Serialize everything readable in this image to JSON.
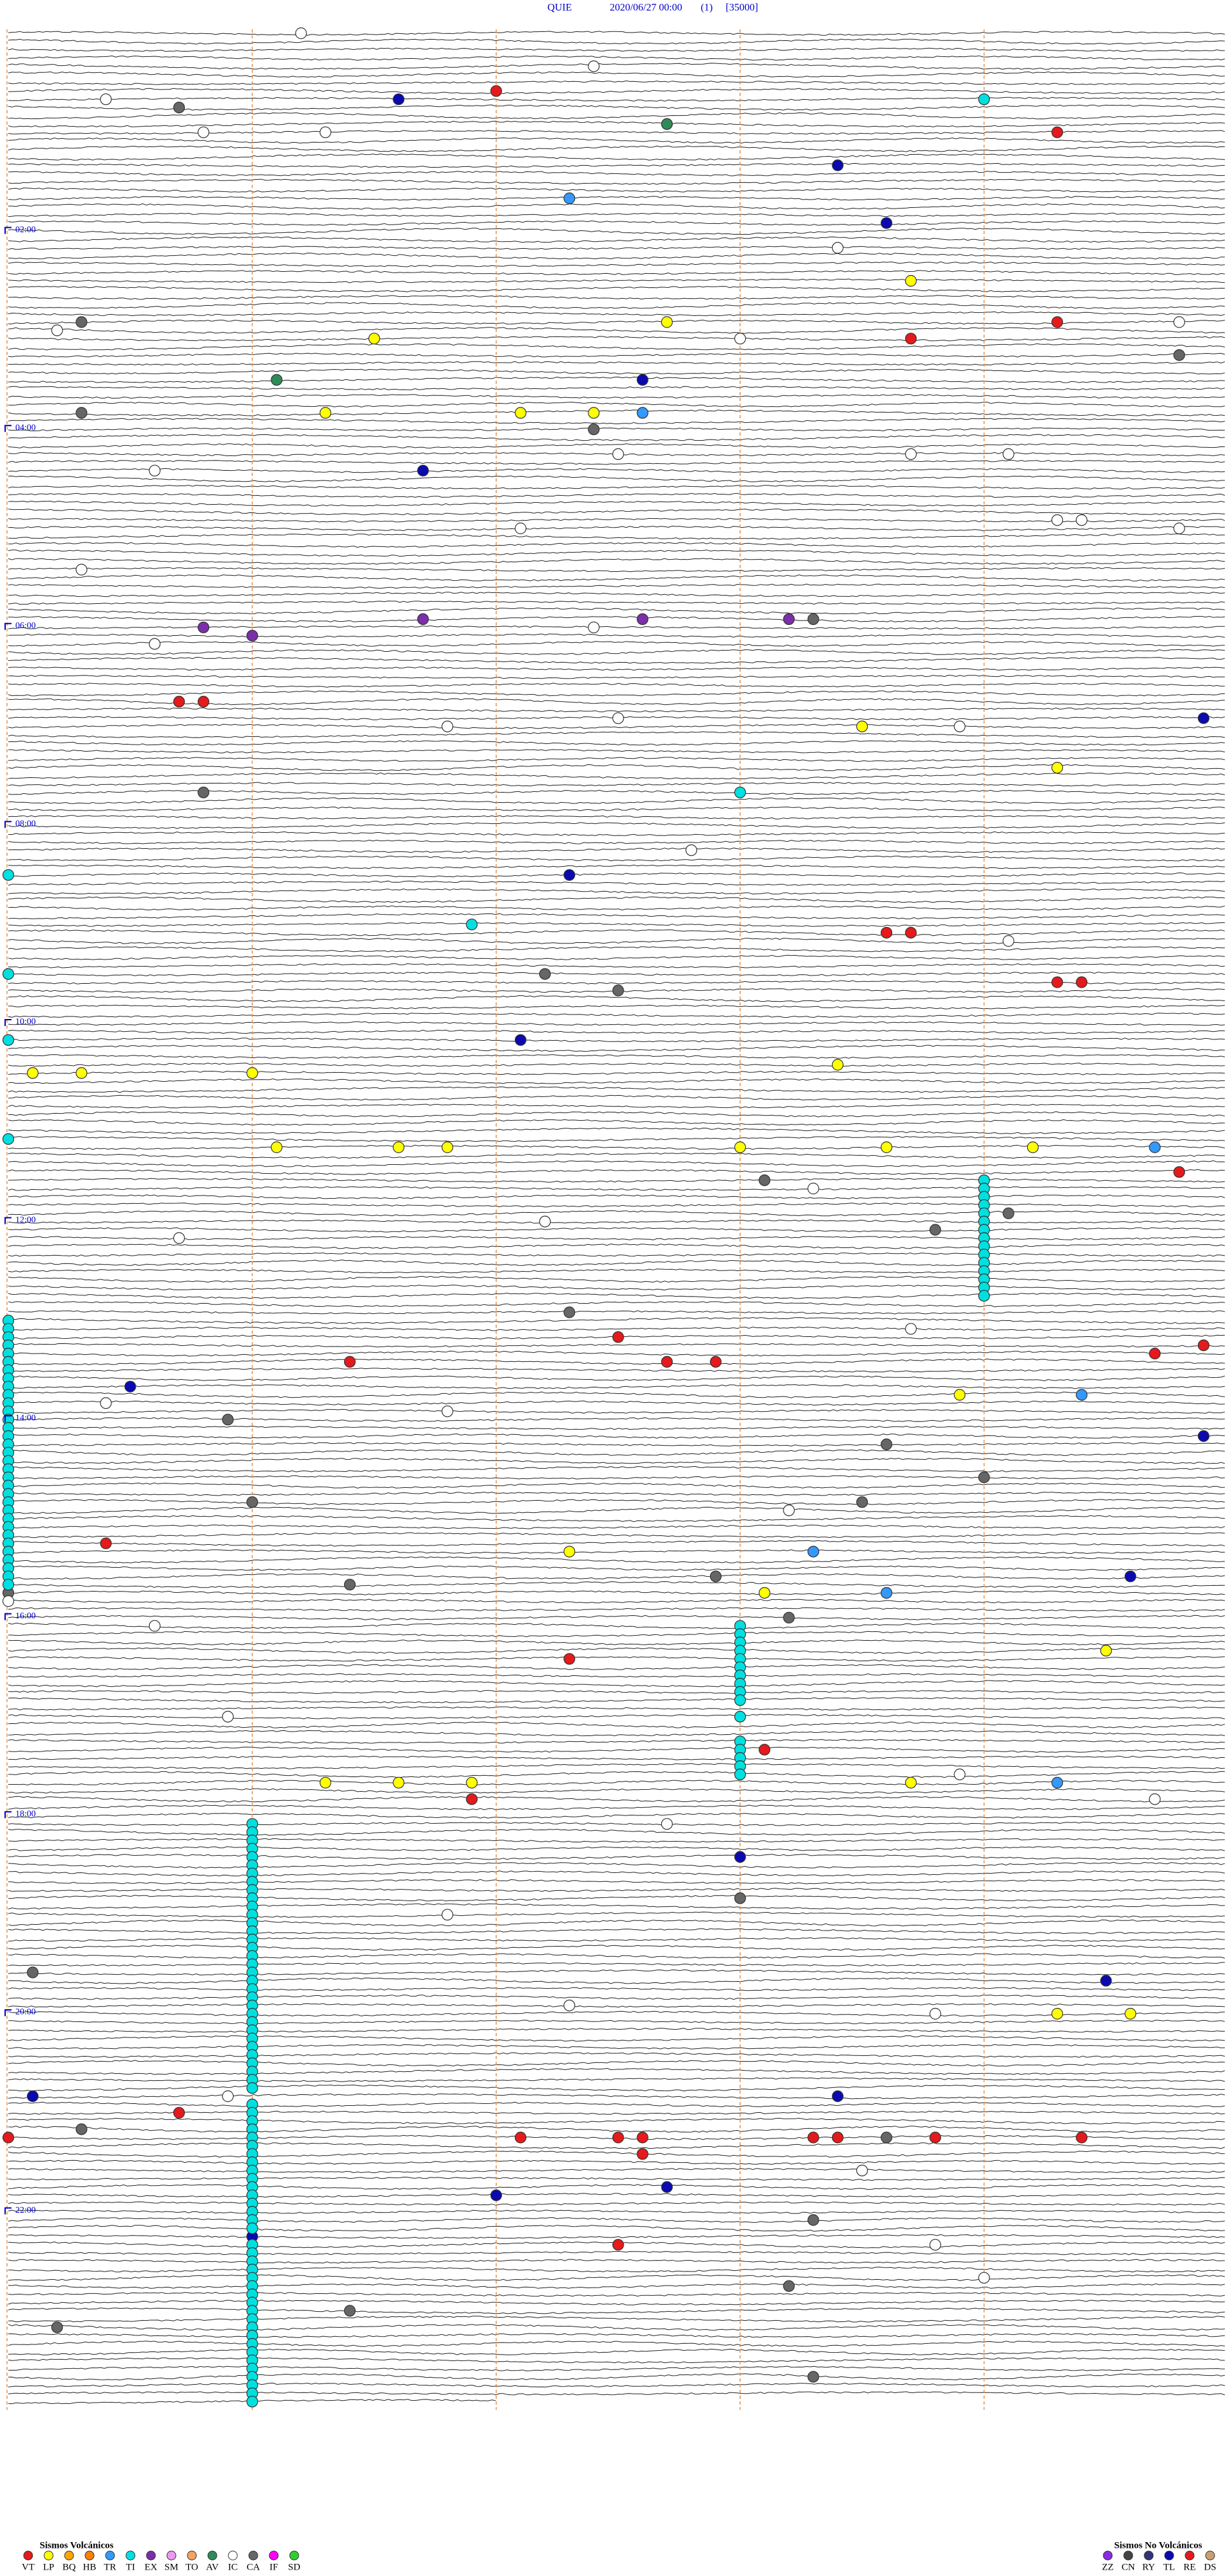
{
  "header": {
    "station": "QUIE",
    "datetime": "2020/06/27 00:00",
    "channel": "(1)",
    "scale": "[35000]"
  },
  "hour_labels": [
    "02:00",
    "04:00",
    "06:00",
    "08:00",
    "10:00",
    "12:00",
    "14:00",
    "16:00",
    "18:00",
    "20:00",
    "22:00"
  ],
  "legend": {
    "volcanic": {
      "title": "Sismos Volcánicos",
      "codes": [
        "VT",
        "LP",
        "BQ",
        "HB",
        "TR",
        "TI",
        "EX",
        "SM",
        "TO",
        "AV",
        "IC",
        "CA",
        "IF",
        "SD"
      ]
    },
    "non_volcanic": {
      "title": "Sismos No Volcánicos",
      "codes": [
        "ZZ",
        "CN",
        "RY",
        "TL",
        "RE",
        "DS"
      ]
    }
  },
  "colors": {
    "VT": "#e41a1c",
    "LP": "#ffff00",
    "BQ": "#ffa500",
    "HB": "#ff7f00",
    "TR": "#3399ff",
    "TI": "#00e0e0",
    "EX": "#7b2fa8",
    "SM": "#ee99ee",
    "TO": "#f4a460",
    "AV": "#2e8b57",
    "IC": "#ffffff",
    "CA": "#666666",
    "IF": "#ff00ff",
    "SD": "#32cd32",
    "ZZ": "#8a2be2",
    "CN": "#444444",
    "RY": "#333377",
    "TL": "#0a0ab0",
    "RE": "#e41a1c",
    "DS": "#c8a070"
  },
  "events": [
    [
      1.2,
      "IC"
    ],
    [
      37.0,
      "VT"
    ],
    [
      44.0,
      "TI"
    ],
    [
      45.7,
      "CA"
    ],
    [
      41.6,
      "TL"
    ],
    [
      57.7,
      "AV"
    ],
    [
      64.3,
      "VT"
    ],
    [
      83.4,
      "TL"
    ],
    [
      102.3,
      "TR"
    ],
    [
      118.6,
      "TL"
    ],
    [
      153.7,
      "LP"
    ],
    [
      177.7,
      "LP"
    ],
    [
      179.3,
      "VT"
    ],
    [
      175.3,
      "CA"
    ],
    [
      186.5,
      "LP"
    ],
    [
      188.7,
      "VT"
    ],
    [
      199.8,
      "CA"
    ],
    [
      212.6,
      "TL"
    ],
    [
      211.1,
      "AV"
    ],
    [
      232.1,
      "LP"
    ],
    [
      232.4,
      "LP"
    ],
    [
      232.6,
      "TR"
    ],
    [
      230.3,
      "CA"
    ],
    [
      231.3,
      "LP"
    ],
    [
      242.4,
      "CA"
    ],
    [
      266.7,
      "TL"
    ],
    [
      357.6,
      "EX"
    ],
    [
      358.2,
      "EX"
    ],
    [
      358.3,
      "CA"
    ],
    [
      360.8,
      "EX"
    ],
    [
      366.0,
      "EX"
    ],
    [
      356.7,
      "EX"
    ],
    [
      405.7,
      "VT"
    ],
    [
      405.8,
      "VT"
    ],
    [
      423.5,
      "LP"
    ],
    [
      419.9,
      "TL"
    ],
    [
      449.3,
      "LP"
    ],
    [
      460.8,
      "CA"
    ],
    [
      463.0,
      "TI"
    ],
    [
      512.3,
      "TL"
    ],
    [
      548.6,
      "VT"
    ],
    [
      548.7,
      "VT"
    ],
    [
      572.2,
      "CA"
    ],
    [
      582.5,
      "CA"
    ],
    [
      579.3,
      "VT"
    ],
    [
      579.4,
      "VT"
    ],
    [
      612.1,
      "TL"
    ],
    [
      628.4,
      "LP"
    ],
    [
      630.1,
      "LP"
    ],
    [
      630.3,
      "LP"
    ],
    [
      631.0,
      "LP"
    ],
    [
      678.0,
      "LP"
    ],
    [
      678.6,
      "LP"
    ],
    [
      679.2,
      "LP"
    ],
    [
      679.7,
      "TR"
    ],
    [
      676.1,
      "LP"
    ],
    [
      676.6,
      "LP"
    ],
    [
      676.8,
      "LP"
    ],
    [
      694.8,
      "VT"
    ],
    [
      698.1,
      "CA"
    ],
    [
      728.8,
      "CA"
    ],
    [
      719.1,
      "CA"
    ],
    [
      777.3,
      "CA"
    ],
    [
      792.5,
      "VT"
    ],
    [
      807.7,
      "VT"
    ],
    [
      807.9,
      "VT"
    ],
    [
      804.7,
      "VT"
    ],
    [
      799.9,
      "VT"
    ],
    [
      806.4,
      "VT"
    ],
    [
      820.5,
      "TL"
    ],
    [
      828.9,
      "LP"
    ],
    [
      829.4,
      "TR"
    ],
    [
      840.9,
      "CA"
    ],
    [
      854.9,
      "TL"
    ],
    [
      858.6,
      "CA"
    ],
    [
      879.0,
      "CA"
    ],
    [
      891.0,
      "CA"
    ],
    [
      893.5,
      "CA"
    ],
    [
      915.4,
      "VT"
    ],
    [
      922.3,
      "LP"
    ],
    [
      923.3,
      "TR"
    ],
    [
      937.9,
      "CA"
    ],
    [
      939.6,
      "TL"
    ],
    [
      945.0,
      "CA"
    ],
    [
      941.4,
      "CA"
    ],
    [
      948.1,
      "LP"
    ],
    [
      948.6,
      "TR"
    ],
    [
      963.2,
      "CA"
    ],
    [
      987.3,
      "VT"
    ],
    [
      984.5,
      "LP"
    ],
    [
      1043.1,
      "VT"
    ],
    [
      1063.7,
      "LP"
    ],
    [
      1064.3,
      "TR"
    ],
    [
      1061.3,
      "LP"
    ],
    [
      1061.6,
      "LP"
    ],
    [
      1061.9,
      "LP"
    ],
    [
      1071.9,
      "VT"
    ],
    [
      1108.0,
      "TL"
    ],
    [
      1133.0,
      "CA"
    ],
    [
      1175.1,
      "CA"
    ],
    [
      1184.5,
      "TL"
    ],
    [
      1204.3,
      "LP"
    ],
    [
      1204.6,
      "LP"
    ],
    [
      1253.4,
      "TL"
    ],
    [
      1250.1,
      "TL"
    ],
    [
      1260.7,
      "VT"
    ],
    [
      1270.3,
      "CA"
    ],
    [
      1277.1,
      "VT"
    ],
    [
      1277.5,
      "VT"
    ],
    [
      1277.6,
      "VT"
    ],
    [
      1278.3,
      "VT"
    ],
    [
      1278.4,
      "VT"
    ],
    [
      1278.6,
      "CA"
    ],
    [
      1278.8,
      "VT"
    ],
    [
      1279.4,
      "VT"
    ],
    [
      1275.0,
      "VT"
    ],
    [
      1287.6,
      "VT"
    ],
    [
      1307.7,
      "TL"
    ],
    [
      1312.0,
      "TL"
    ],
    [
      1328.3,
      "CA"
    ],
    [
      1336.0,
      "TL"
    ],
    [
      1342.5,
      "VT"
    ],
    [
      1368.2,
      "CA"
    ],
    [
      1381.4,
      "CA"
    ],
    [
      1390.2,
      "CA"
    ],
    [
      1423.3,
      "CA"
    ],
    [
      22.4,
      "IC"
    ],
    [
      40.4,
      "IC"
    ],
    [
      60.8,
      "IC"
    ],
    [
      61.3,
      "IC"
    ],
    [
      133.4,
      "IC"
    ],
    [
      188.0,
      "IC"
    ],
    [
      179.8,
      "IC"
    ],
    [
      180.2,
      "IC"
    ],
    [
      257.5,
      "IC"
    ],
    [
      258.7,
      "IC"
    ],
    [
      259.1,
      "IC"
    ],
    [
      265.6,
      "IC"
    ],
    [
      302.1,
      "IC"
    ],
    [
      299.3,
      "IC"
    ],
    [
      299.4,
      "IC"
    ],
    [
      304.8,
      "IC"
    ],
    [
      325.3,
      "IC"
    ],
    [
      362.4,
      "IC"
    ],
    [
      370.6,
      "IC"
    ],
    [
      417.5,
      "IC"
    ],
    [
      423.9,
      "IC"
    ],
    [
      421.8,
      "IC"
    ],
    [
      497.8,
      "IC"
    ],
    [
      554.1,
      "IC"
    ],
    [
      703.3,
      "IC"
    ],
    [
      722.2,
      "IC"
    ],
    [
      730.7,
      "IC"
    ],
    [
      788.7,
      "IC"
    ],
    [
      830.4,
      "IC"
    ],
    [
      836.8,
      "IC"
    ],
    [
      898.2,
      "IC"
    ],
    [
      950.0,
      "IC"
    ],
    [
      965.6,
      "IC"
    ],
    [
      1020.9,
      "IC"
    ],
    [
      1058.9,
      "IC"
    ],
    [
      1074.7,
      "IC"
    ],
    [
      1087.7,
      "IC"
    ],
    [
      1141.8,
      "IC"
    ],
    [
      1197.3,
      "IC"
    ],
    [
      1203.8,
      "IC"
    ],
    [
      1250.9,
      "IC"
    ],
    [
      1298.5,
      "IC"
    ],
    [
      1343.8,
      "IC"
    ],
    [
      1364.0,
      "IC"
    ],
    [
      510.0,
      "TI"
    ],
    [
      541.9,
      "TI"
    ],
    [
      570.0,
      "TI"
    ],
    [
      610.0,
      "TI"
    ],
    [
      670.0,
      "TI"
    ],
    [
      699.0,
      "TI"
    ],
    [
      704.0,
      "TI"
    ],
    [
      709.0,
      "TI"
    ],
    [
      714.0,
      "TI"
    ],
    [
      719.0,
      "TI"
    ],
    [
      724.0,
      "TI"
    ],
    [
      729.0,
      "TI"
    ],
    [
      734.0,
      "TI"
    ],
    [
      739.0,
      "TI"
    ],
    [
      744.0,
      "TI"
    ],
    [
      749.0,
      "TI"
    ],
    [
      754.0,
      "TI"
    ],
    [
      759.0,
      "TI"
    ],
    [
      764.0,
      "TI"
    ],
    [
      769.0,
      "TI"
    ],
    [
      780.0,
      "TI"
    ],
    [
      785.0,
      "TI"
    ],
    [
      790.0,
      "TI"
    ],
    [
      795.0,
      "TI"
    ],
    [
      800.0,
      "TI"
    ],
    [
      805.0,
      "TI"
    ],
    [
      810.0,
      "TI"
    ],
    [
      815.0,
      "TI"
    ],
    [
      820.0,
      "TI"
    ],
    [
      825.0,
      "TI"
    ],
    [
      830.0,
      "TI"
    ],
    [
      835.0,
      "TI"
    ],
    [
      840.0,
      "TI"
    ],
    [
      845.0,
      "TI"
    ],
    [
      850.0,
      "TI"
    ],
    [
      855.0,
      "TI"
    ],
    [
      860.0,
      "TI"
    ],
    [
      865.0,
      "TI"
    ],
    [
      870.0,
      "TI"
    ],
    [
      875.0,
      "TI"
    ],
    [
      880.0,
      "TI"
    ],
    [
      885.0,
      "TI"
    ],
    [
      890.0,
      "TI"
    ],
    [
      895.0,
      "TI"
    ],
    [
      900.0,
      "TI"
    ],
    [
      905.0,
      "TI"
    ],
    [
      910.0,
      "TI"
    ],
    [
      915.0,
      "TI"
    ],
    [
      920.0,
      "TI"
    ],
    [
      925.0,
      "TI"
    ],
    [
      930.0,
      "TI"
    ],
    [
      935.0,
      "TI"
    ],
    [
      940.0,
      "TI"
    ],
    [
      968.0,
      "TI"
    ],
    [
      973.0,
      "TI"
    ],
    [
      978.0,
      "TI"
    ],
    [
      983.0,
      "TI"
    ],
    [
      988.0,
      "TI"
    ],
    [
      993.0,
      "TI"
    ],
    [
      998.0,
      "TI"
    ],
    [
      1003.0,
      "TI"
    ],
    [
      1008.0,
      "TI"
    ],
    [
      1013.0,
      "TI"
    ],
    [
      1023.0,
      "TI"
    ],
    [
      1038.0,
      "TI"
    ],
    [
      1043.0,
      "TI"
    ],
    [
      1048.0,
      "TI"
    ],
    [
      1053.0,
      "TI"
    ],
    [
      1058.0,
      "TI"
    ],
    [
      1086.0,
      "TI"
    ],
    [
      1091.0,
      "TI"
    ],
    [
      1096.0,
      "TI"
    ],
    [
      1101.0,
      "TI"
    ],
    [
      1106.0,
      "TI"
    ],
    [
      1111.0,
      "TI"
    ],
    [
      1116.0,
      "TI"
    ],
    [
      1121.0,
      "TI"
    ],
    [
      1126.0,
      "TI"
    ],
    [
      1131.0,
      "TI"
    ],
    [
      1136.0,
      "TI"
    ],
    [
      1141.0,
      "TI"
    ],
    [
      1146.0,
      "TI"
    ],
    [
      1151.0,
      "TI"
    ],
    [
      1156.0,
      "TI"
    ],
    [
      1161.0,
      "TI"
    ],
    [
      1166.0,
      "TI"
    ],
    [
      1171.0,
      "TI"
    ],
    [
      1176.0,
      "TI"
    ],
    [
      1181.0,
      "TI"
    ],
    [
      1186.0,
      "TI"
    ],
    [
      1191.0,
      "TI"
    ],
    [
      1196.0,
      "TI"
    ],
    [
      1201.0,
      "TI"
    ],
    [
      1206.0,
      "TI"
    ],
    [
      1211.0,
      "TI"
    ],
    [
      1216.0,
      "TI"
    ],
    [
      1221.0,
      "TI"
    ],
    [
      1226.0,
      "TI"
    ],
    [
      1231.0,
      "TI"
    ],
    [
      1236.0,
      "TI"
    ],
    [
      1241.0,
      "TI"
    ],
    [
      1246.0,
      "TI"
    ],
    [
      1256.0,
      "TI"
    ],
    [
      1261.0,
      "TI"
    ],
    [
      1266.0,
      "TI"
    ],
    [
      1271.0,
      "TI"
    ],
    [
      1276.0,
      "TI"
    ],
    [
      1281.0,
      "TI"
    ],
    [
      1286.0,
      "TI"
    ],
    [
      1291.0,
      "TI"
    ],
    [
      1296.0,
      "TI"
    ],
    [
      1301.0,
      "TI"
    ],
    [
      1306.0,
      "TI"
    ],
    [
      1311.0,
      "TI"
    ],
    [
      1316.0,
      "TI"
    ],
    [
      1321.0,
      "TI"
    ],
    [
      1326.0,
      "TI"
    ],
    [
      1331.0,
      "TI"
    ],
    [
      1341.0,
      "TI"
    ],
    [
      1346.0,
      "TI"
    ],
    [
      1351.0,
      "TI"
    ],
    [
      1356.0,
      "TI"
    ],
    [
      1361.0,
      "TI"
    ],
    [
      1366.0,
      "TI"
    ],
    [
      1371.0,
      "TI"
    ],
    [
      1376.0,
      "TI"
    ],
    [
      1381.0,
      "TI"
    ],
    [
      1386.0,
      "TI"
    ],
    [
      1391.0,
      "TI"
    ],
    [
      1396.0,
      "TI"
    ],
    [
      1401.0,
      "TI"
    ],
    [
      1406.0,
      "TI"
    ],
    [
      1411.0,
      "TI"
    ],
    [
      1416.0,
      "TI"
    ],
    [
      1421.0,
      "TI"
    ],
    [
      1426.0,
      "TI"
    ],
    [
      1431.0,
      "TI"
    ],
    [
      1436.0,
      "TI"
    ]
  ]
}
